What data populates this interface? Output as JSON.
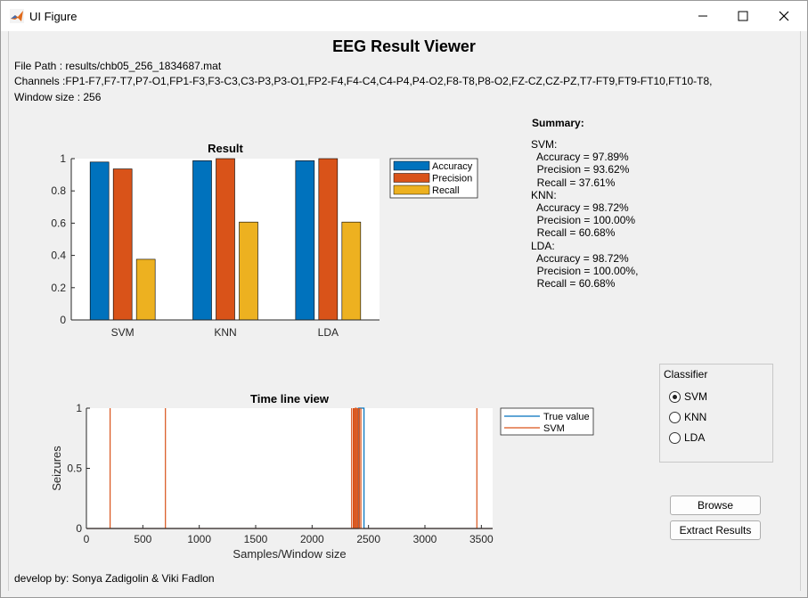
{
  "window": {
    "title": "UI Figure"
  },
  "app": {
    "heading": "EEG Result Viewer",
    "file_path": "File Path : results/chb05_256_1834687.mat",
    "channels": "Channels :FP1-F7,F7-T7,P7-O1,FP1-F3,F3-C3,C3-P3,P3-O1,FP2-F4,F4-C4,C4-P4,P4-O2,F8-T8,P8-O2,FZ-CZ,CZ-PZ,T7-FT9,FT9-FT10,FT10-T8,",
    "window_size": "Window size : 256",
    "footer": "develop by: Sonya Zadigolin & Viki Fadlon"
  },
  "summary": {
    "title": "Summary:",
    "lines": [
      "SVM:",
      "  Accuracy = 97.89%",
      "  Precision = 93.62%",
      "  Recall = 37.61%",
      "KNN:",
      "  Accuracy = 98.72%",
      "  Precision = 100.00%",
      "  Recall = 60.68%",
      "LDA:",
      "  Accuracy = 98.72%",
      "  Precision = 100.00%,",
      "  Recall = 60.68%"
    ]
  },
  "classifier_panel": {
    "title": "Classifier",
    "options": [
      {
        "label": "SVM",
        "selected": true
      },
      {
        "label": "KNN",
        "selected": false
      },
      {
        "label": "LDA",
        "selected": false
      }
    ]
  },
  "buttons": {
    "browse": "Browse",
    "extract": "Extract  Results"
  },
  "colors": {
    "accuracy": "#0072bd",
    "precision": "#d95319",
    "recall": "#edb120",
    "true_value": "#0072bd",
    "svm": "#d95319"
  },
  "chart_data": [
    {
      "type": "bar",
      "title": "Result",
      "categories": [
        "SVM",
        "KNN",
        "LDA"
      ],
      "series": [
        {
          "name": "Accuracy",
          "values": [
            0.9789,
            0.9872,
            0.9872
          ]
        },
        {
          "name": "Precision",
          "values": [
            0.9362,
            1.0,
            1.0
          ]
        },
        {
          "name": "Recall",
          "values": [
            0.3761,
            0.6068,
            0.6068
          ]
        }
      ],
      "ylim": [
        0,
        1
      ],
      "yticks": [
        "0",
        "0.2",
        "0.4",
        "0.6",
        "0.8",
        "1"
      ],
      "legend": "top-right (outside)"
    },
    {
      "type": "line",
      "title": "Time line view",
      "xlabel": "Samples/Window size",
      "ylabel": "Seizures",
      "xlim": [
        0,
        3600
      ],
      "ylim": [
        0,
        1
      ],
      "xticks": [
        "0",
        "500",
        "1000",
        "1500",
        "2000",
        "2500",
        "3000",
        "3500"
      ],
      "yticks": [
        "0",
        "0.5",
        "1"
      ],
      "series": [
        {
          "name": "True value",
          "pulses": [
            [
              2410,
              2460
            ]
          ]
        },
        {
          "name": "SVM",
          "pulses": [
            [
              210,
              210
            ],
            [
              700,
              700
            ],
            [
              2350,
              2350
            ],
            [
              2365,
              2365
            ],
            [
              2375,
              2375
            ],
            [
              2385,
              2390
            ],
            [
              2400,
              2400
            ],
            [
              2408,
              2408
            ],
            [
              2420,
              2420
            ],
            [
              2432,
              2432
            ],
            [
              3460,
              3460
            ]
          ]
        }
      ],
      "legend": "top-right (outside)"
    }
  ]
}
